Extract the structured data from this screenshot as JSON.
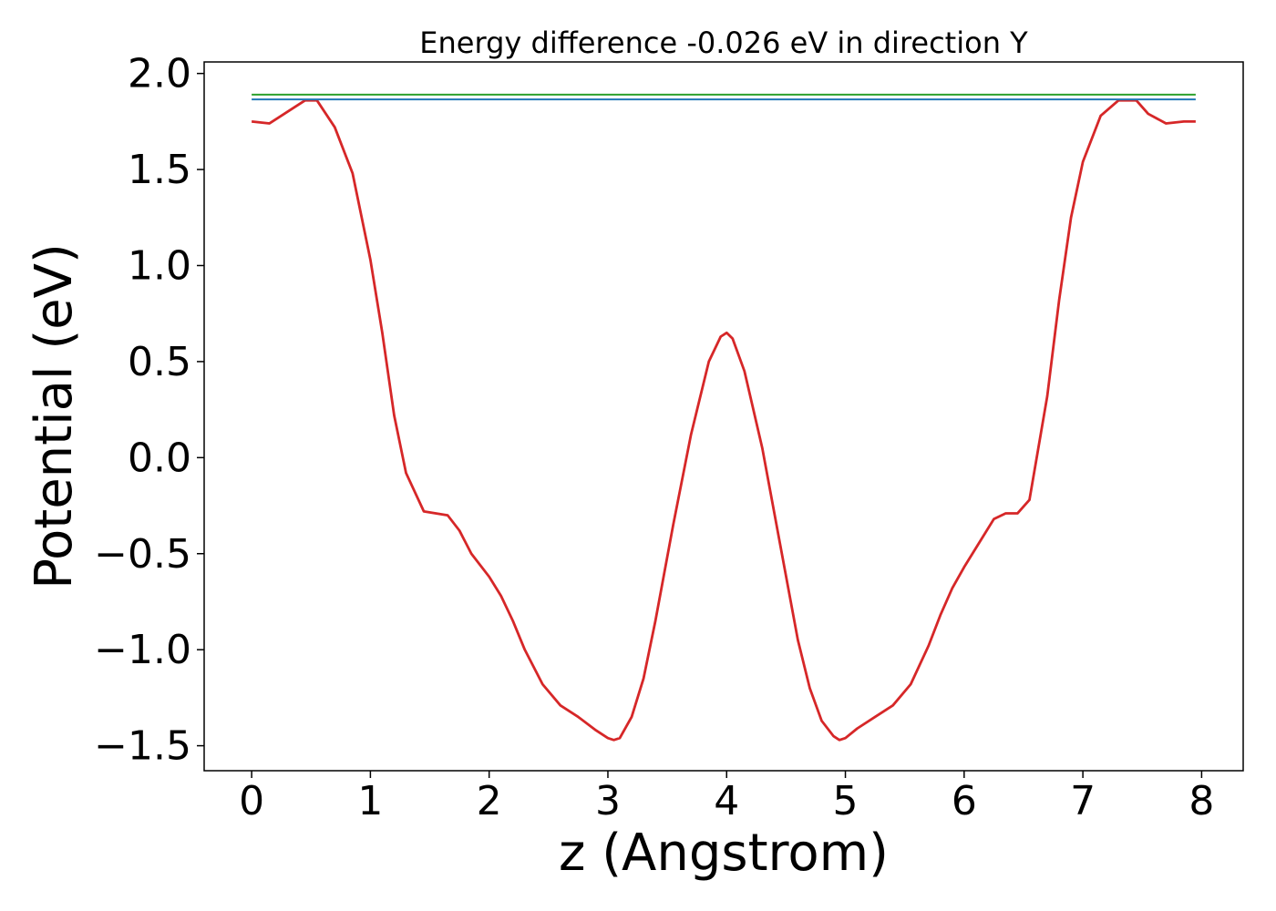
{
  "chart_data": {
    "type": "line",
    "title": "Energy difference -0.026 eV in direction Y",
    "xlabel": "z (Angstrom)",
    "ylabel": "Potential (eV)",
    "xlim": [
      -0.4,
      8.35
    ],
    "ylim": [
      -1.63,
      2.06
    ],
    "xticks": [
      0,
      1,
      2,
      3,
      4,
      5,
      6,
      7,
      8
    ],
    "xtick_labels": [
      "0",
      "1",
      "2",
      "3",
      "4",
      "5",
      "6",
      "7",
      "8"
    ],
    "yticks": [
      2.0,
      1.5,
      1.0,
      0.5,
      0.0,
      -0.5,
      -1.0,
      -1.5
    ],
    "ytick_labels": [
      "2.0",
      "1.5",
      "1.0",
      "0.5",
      "0.0",
      "−0.5",
      "−1.0",
      "−1.5"
    ],
    "grid": false,
    "legend": "none",
    "series": [
      {
        "color": "#d62728",
        "x": [
          0,
          0.15,
          0.3,
          0.45,
          0.55,
          0.7,
          0.85,
          1.0,
          1.1,
          1.2,
          1.3,
          1.45,
          1.55,
          1.65,
          1.75,
          1.85,
          2.0,
          2.1,
          2.2,
          2.3,
          2.45,
          2.6,
          2.75,
          2.9,
          3.0,
          3.05,
          3.1,
          3.2,
          3.3,
          3.4,
          3.55,
          3.7,
          3.85,
          3.95,
          4.0,
          4.05,
          4.15,
          4.3,
          4.45,
          4.6,
          4.7,
          4.8,
          4.9,
          4.95,
          5.0,
          5.1,
          5.25,
          5.4,
          5.55,
          5.7,
          5.8,
          5.9,
          6.0,
          6.15,
          6.25,
          6.35,
          6.45,
          6.55,
          6.7,
          6.8,
          6.9,
          7.0,
          7.15,
          7.3,
          7.45,
          7.55,
          7.7,
          7.85,
          7.95
        ],
        "y": [
          1.75,
          1.74,
          1.8,
          1.86,
          1.86,
          1.72,
          1.48,
          1.03,
          0.65,
          0.22,
          -0.08,
          -0.28,
          -0.29,
          -0.3,
          -0.38,
          -0.5,
          -0.62,
          -0.72,
          -0.85,
          -1.0,
          -1.18,
          -1.29,
          -1.35,
          -1.42,
          -1.46,
          -1.47,
          -1.46,
          -1.35,
          -1.15,
          -0.85,
          -0.35,
          0.12,
          0.5,
          0.63,
          0.65,
          0.62,
          0.45,
          0.05,
          -0.45,
          -0.95,
          -1.2,
          -1.37,
          -1.45,
          -1.47,
          -1.46,
          -1.41,
          -1.35,
          -1.29,
          -1.18,
          -0.98,
          -0.82,
          -0.68,
          -0.57,
          -0.42,
          -0.32,
          -0.29,
          -0.29,
          -0.22,
          0.32,
          0.82,
          1.25,
          1.54,
          1.78,
          1.86,
          1.86,
          1.79,
          1.74,
          1.75,
          1.75
        ]
      },
      {
        "color": "#2ca02c",
        "x": [
          0,
          7.95
        ],
        "y": [
          1.89,
          1.89
        ]
      },
      {
        "color": "#1f77b4",
        "x": [
          0,
          7.95
        ],
        "y": [
          1.865,
          1.865
        ]
      }
    ]
  }
}
